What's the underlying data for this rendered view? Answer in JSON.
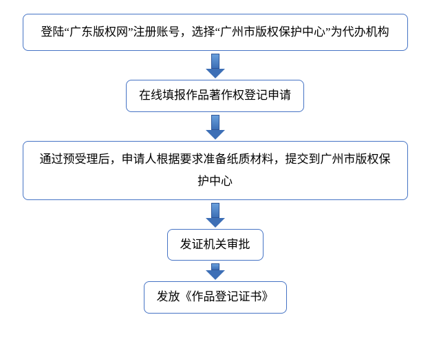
{
  "flowchart": {
    "type": "flowchart",
    "direction": "vertical",
    "background_color": "#ffffff",
    "node_border_color": "#4472c4",
    "node_border_radius": 8,
    "node_text_color": "#000000",
    "node_fontsize": 17,
    "arrow_fill": "#5b8fd0",
    "arrow_stroke": "#2f5597",
    "nodes": [
      {
        "id": "n1",
        "width": "wide",
        "text": "登陆“广东版权网”注册账号，选择“广州市版权保护中心”为代办机构"
      },
      {
        "id": "n2",
        "width": "narrow",
        "text": "在线填报作品著作权登记申请"
      },
      {
        "id": "n3",
        "width": "wide",
        "text": "通过预受理后，申请人根据要求准备纸质材料，提交到广州市版权保护中心"
      },
      {
        "id": "n4",
        "width": "narrow",
        "text": "发证机关审批"
      },
      {
        "id": "n5",
        "width": "narrow",
        "text": "发放《作品登记证书》"
      }
    ],
    "edges": [
      {
        "from": "n1",
        "to": "n2",
        "length": "long"
      },
      {
        "from": "n2",
        "to": "n3",
        "length": "long"
      },
      {
        "from": "n3",
        "to": "n4",
        "length": "long"
      },
      {
        "from": "n4",
        "to": "n5",
        "length": "short"
      }
    ]
  }
}
